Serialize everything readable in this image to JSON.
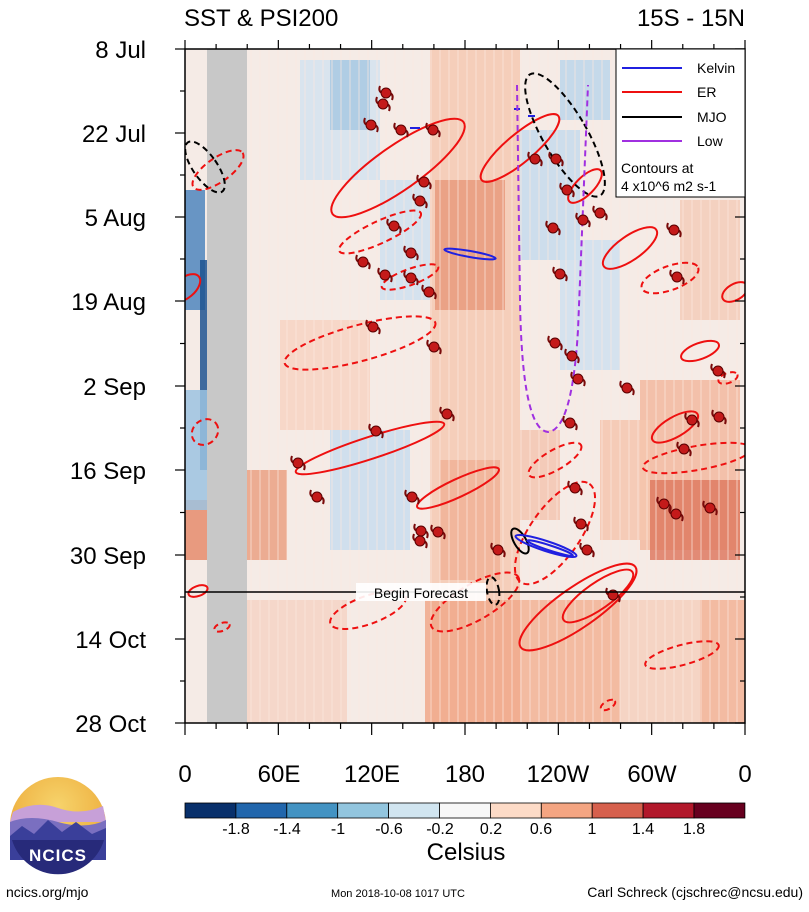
{
  "chart_data": {
    "type": "heatmap",
    "title_left": "SST & PSI200",
    "title_right": "15S - 15N",
    "y_ticks": [
      "8 Jul",
      "22 Jul",
      "5 Aug",
      "19 Aug",
      "2 Sep",
      "16 Sep",
      "30 Sep",
      "14 Oct",
      "28 Oct"
    ],
    "x_ticks": [
      "0",
      "60E",
      "120E",
      "180",
      "120W",
      "60W",
      "0"
    ],
    "xlim_deg_east": [
      0,
      360
    ],
    "legend": {
      "placement": "top-right",
      "entries": [
        {
          "name": "Kelvin",
          "color": "#2020e0",
          "dash": false
        },
        {
          "name": "ER",
          "color": "#ee1010",
          "dash": false
        },
        {
          "name": "MJO",
          "color": "#000000",
          "dash": false
        },
        {
          "name": "Low",
          "color": "#a030e0",
          "dash": false
        }
      ],
      "note_line1": "Contours at",
      "note_line2": "4 x10^6 m2 s-1"
    },
    "forecast_label": "Begin Forecast",
    "forecast_start": "6 Oct",
    "colorbar": {
      "label": "Celsius",
      "tick_labels": [
        "-1.8",
        "-1.4",
        "-1",
        "-0.6",
        "-0.2",
        "0.2",
        "0.6",
        "1",
        "1.4",
        "1.8"
      ],
      "colors": [
        "#08306b",
        "#2166ac",
        "#4393c3",
        "#92c5de",
        "#d1e5f0",
        "#f7f7f7",
        "#fddbc7",
        "#f4a582",
        "#d6604d",
        "#b2182b",
        "#67001f"
      ]
    }
  },
  "footer": {
    "logo_text": "NCICS",
    "url": "ncics.org/mjo",
    "timestamp": "Mon 2018-10-08 1017 UTC",
    "author": "Carl Schreck (cjschrec@ncsu.edu)"
  }
}
